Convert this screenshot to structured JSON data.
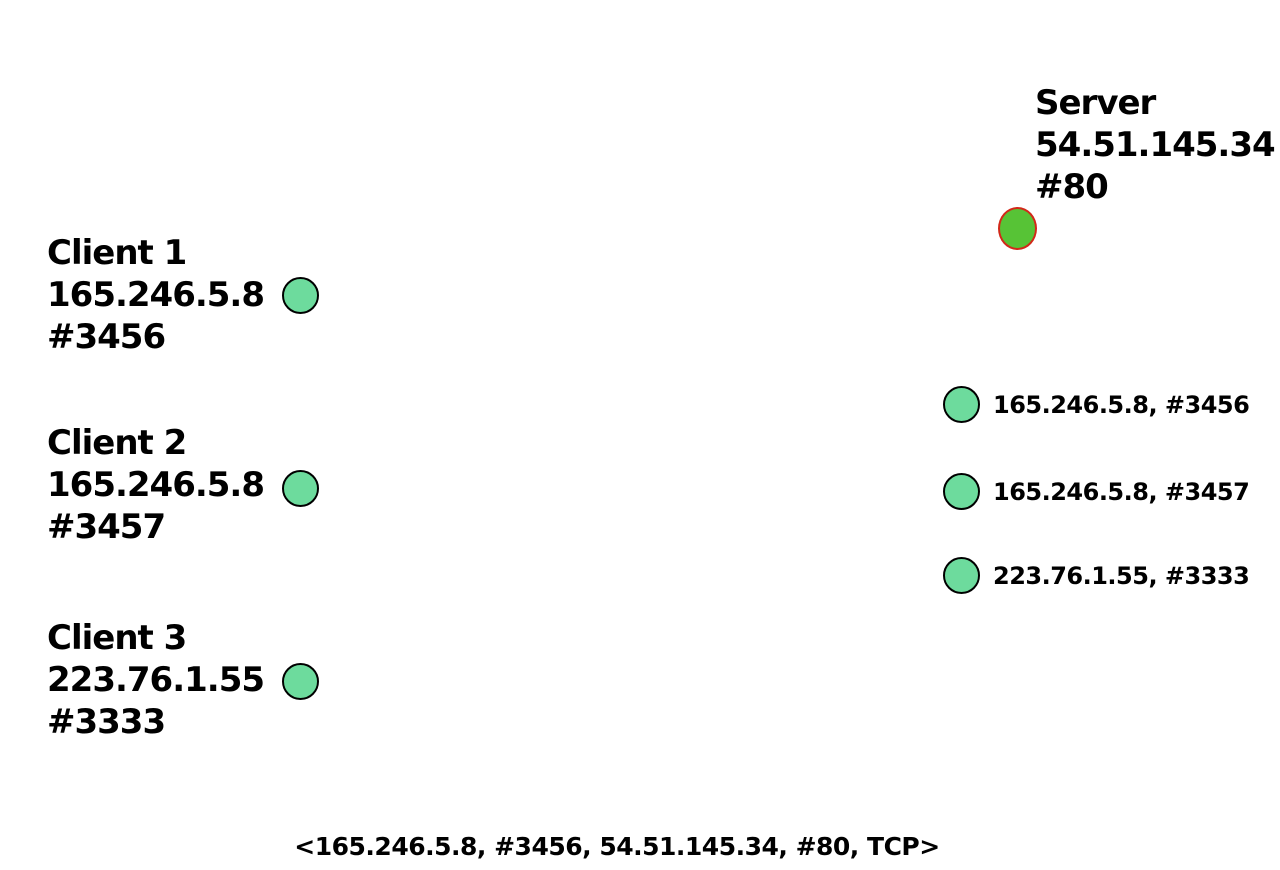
{
  "server": {
    "name": "Server",
    "ip": "54.51.145.34",
    "port": "#80"
  },
  "clients": [
    {
      "name": "Client 1",
      "ip": "165.246.5.8",
      "port": "#3456"
    },
    {
      "name": "Client 2",
      "ip": "165.246.5.8",
      "port": "#3457"
    },
    {
      "name": "Client 3",
      "ip": "223.76.1.55",
      "port": "#3333"
    }
  ],
  "server_sockets": [
    {
      "label": "165.246.5.8, #3456"
    },
    {
      "label": "165.246.5.8, #3457"
    },
    {
      "label": "223.76.1.55, #3333"
    }
  ],
  "connection_tuple": "<165.246.5.8, #3456, 54.51.145.34, #80, TCP>",
  "colors": {
    "background": "#FFFFFF",
    "text": "#000000",
    "client_socket_fill": "#6DDB9D",
    "client_socket_border": "#000000",
    "server_socket_fill": "#57C336",
    "server_socket_border": "#D22819"
  }
}
